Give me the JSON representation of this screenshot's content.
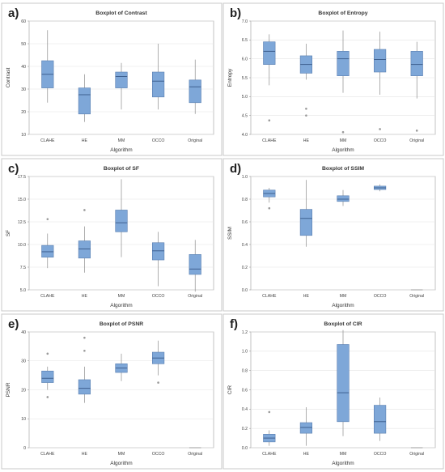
{
  "style": {
    "box_fill": "#7ea7d8",
    "box_stroke": "#5a7fb0",
    "median_color": "#2f4f7f",
    "whisker_color": "#7a7a7a",
    "outlier_color": "#9a9a9a"
  },
  "chart_data": [
    {
      "label": "a)",
      "type": "boxplot",
      "title": "Boxplot of Contrast",
      "xlabel": "Algorithm",
      "ylabel": "Contrast",
      "ylim": [
        10,
        60
      ],
      "yticks": [
        10,
        20,
        30,
        40,
        50,
        60
      ],
      "ytick_labels": [
        "10",
        "20",
        "30",
        "40",
        "50",
        "60"
      ],
      "categories": [
        "CLAHE",
        "HE",
        "MM",
        "OCCO",
        "Original"
      ],
      "boxes": [
        {
          "min": 24,
          "q1": 30.5,
          "median": 36.5,
          "q3": 42.5,
          "max": 56,
          "outliers": []
        },
        {
          "min": 15.5,
          "q1": 19,
          "median": 27.5,
          "q3": 30.5,
          "max": 36.5,
          "outliers": []
        },
        {
          "min": 21,
          "q1": 30.5,
          "median": 35.5,
          "q3": 37.5,
          "max": 41.5,
          "outliers": []
        },
        {
          "min": 21,
          "q1": 26.5,
          "median": 33.5,
          "q3": 37.5,
          "max": 50,
          "outliers": []
        },
        {
          "min": 19,
          "q1": 24,
          "median": 31,
          "q3": 34,
          "max": 43,
          "outliers": []
        }
      ]
    },
    {
      "label": "b)",
      "type": "boxplot",
      "title": "Boxplot of Entropy",
      "xlabel": "Algorithm",
      "ylabel": "Entropy",
      "ylim": [
        4.0,
        7.0
      ],
      "yticks": [
        4.0,
        4.5,
        5.0,
        5.5,
        6.0,
        6.5,
        7.0
      ],
      "ytick_labels": [
        "4.0",
        "4.5",
        "5.0",
        "5.5",
        "6.0",
        "6.5",
        "7.0"
      ],
      "categories": [
        "CLAHE",
        "HE",
        "MM",
        "OCCO",
        "Original"
      ],
      "boxes": [
        {
          "min": 5.3,
          "q1": 5.85,
          "median": 6.2,
          "q3": 6.45,
          "max": 6.65,
          "outliers": [
            4.37
          ]
        },
        {
          "min": 5.45,
          "q1": 5.62,
          "median": 5.85,
          "q3": 6.08,
          "max": 6.4,
          "outliers": [
            4.68,
            4.5
          ]
        },
        {
          "min": 5.1,
          "q1": 5.55,
          "median": 6.0,
          "q3": 6.2,
          "max": 6.75,
          "outliers": [
            4.06
          ]
        },
        {
          "min": 5.05,
          "q1": 5.65,
          "median": 5.98,
          "q3": 6.25,
          "max": 6.72,
          "outliers": [
            4.14
          ]
        },
        {
          "min": 4.95,
          "q1": 5.55,
          "median": 5.85,
          "q3": 6.2,
          "max": 6.45,
          "outliers": [
            4.1
          ]
        }
      ]
    },
    {
      "label": "c)",
      "type": "boxplot",
      "title": "Boxplot of SF",
      "xlabel": "Algorithm",
      "ylabel": "SF",
      "ylim": [
        5.0,
        17.5
      ],
      "yticks": [
        5.0,
        7.5,
        10.0,
        12.5,
        15.0,
        17.5
      ],
      "ytick_labels": [
        "5.0",
        "7.5",
        "10.0",
        "12.5",
        "15.0",
        "17.5"
      ],
      "categories": [
        "CLAHE",
        "HE",
        "MM",
        "OCCO",
        "Original"
      ],
      "boxes": [
        {
          "min": 7.4,
          "q1": 8.6,
          "median": 9.2,
          "q3": 9.9,
          "max": 11.2,
          "outliers": [
            12.8
          ]
        },
        {
          "min": 6.9,
          "q1": 8.5,
          "median": 9.5,
          "q3": 10.4,
          "max": 12.0,
          "outliers": [
            13.8
          ]
        },
        {
          "min": 8.6,
          "q1": 11.4,
          "median": 12.4,
          "q3": 13.8,
          "max": 17.2,
          "outliers": []
        },
        {
          "min": 5.4,
          "q1": 8.3,
          "median": 9.3,
          "q3": 10.2,
          "max": 11.4,
          "outliers": []
        },
        {
          "min": 4.8,
          "q1": 6.7,
          "median": 7.3,
          "q3": 8.9,
          "max": 10.5,
          "outliers": []
        }
      ]
    },
    {
      "label": "d)",
      "type": "boxplot",
      "title": "Boxplot of SSIM",
      "xlabel": "Algorithm",
      "ylabel": "SSIM",
      "ylim": [
        0.0,
        1.0
      ],
      "yticks": [
        0.0,
        0.2,
        0.4,
        0.6,
        0.8,
        1.0
      ],
      "ytick_labels": [
        "0.0",
        "0.2",
        "0.4",
        "0.6",
        "0.8",
        "1.0"
      ],
      "categories": [
        "CLAHE",
        "HE",
        "MM",
        "OCCO",
        "Original"
      ],
      "boxes": [
        {
          "min": 0.77,
          "q1": 0.82,
          "median": 0.85,
          "q3": 0.88,
          "max": 0.9,
          "outliers": [
            0.72
          ]
        },
        {
          "min": 0.38,
          "q1": 0.48,
          "median": 0.63,
          "q3": 0.71,
          "max": 0.97,
          "outliers": []
        },
        {
          "min": 0.74,
          "q1": 0.78,
          "median": 0.8,
          "q3": 0.83,
          "max": 0.88,
          "outliers": []
        },
        {
          "min": 0.87,
          "q1": 0.885,
          "median": 0.9,
          "q3": 0.915,
          "max": 0.93,
          "outliers": []
        },
        {
          "min": 0.0,
          "q1": 0.0,
          "median": 0.0,
          "q3": 0.0,
          "max": 0.0,
          "outliers": []
        }
      ]
    },
    {
      "label": "e)",
      "type": "boxplot",
      "title": "Boxplot of PSNR",
      "xlabel": "Algorithm",
      "ylabel": "PSNR",
      "ylim": [
        0,
        40
      ],
      "yticks": [
        0,
        10,
        20,
        30,
        40
      ],
      "ytick_labels": [
        "0",
        "10",
        "20",
        "30",
        "40"
      ],
      "categories": [
        "CLAHE",
        "HE",
        "MM",
        "OCCO",
        "Original"
      ],
      "boxes": [
        {
          "min": 20,
          "q1": 22.5,
          "median": 24,
          "q3": 26.5,
          "max": 28,
          "outliers": [
            32.5,
            17.5
          ]
        },
        {
          "min": 15.5,
          "q1": 18.5,
          "median": 20.5,
          "q3": 23.5,
          "max": 28,
          "outliers": [
            38,
            33.5
          ]
        },
        {
          "min": 23,
          "q1": 26,
          "median": 27.5,
          "q3": 29,
          "max": 32.5,
          "outliers": []
        },
        {
          "min": 25,
          "q1": 29,
          "median": 31,
          "q3": 33,
          "max": 37,
          "outliers": [
            22.5
          ]
        },
        {
          "min": 0,
          "q1": 0,
          "median": 0,
          "q3": 0,
          "max": 0,
          "outliers": []
        }
      ]
    },
    {
      "label": "f)",
      "type": "boxplot",
      "title": "Boxplot of CIR",
      "xlabel": "Algorithm",
      "ylabel": "CIR",
      "ylim": [
        0.0,
        1.2
      ],
      "yticks": [
        0.0,
        0.2,
        0.4,
        0.6,
        0.8,
        1.0,
        1.2
      ],
      "ytick_labels": [
        "0.0",
        "0.2",
        "0.4",
        "0.6",
        "0.8",
        "1.0",
        "1.2"
      ],
      "categories": [
        "CLAHE",
        "HE",
        "MM",
        "OCCO",
        "Original"
      ],
      "boxes": [
        {
          "min": 0.02,
          "q1": 0.06,
          "median": 0.1,
          "q3": 0.14,
          "max": 0.18,
          "outliers": [
            0.37
          ]
        },
        {
          "min": 0.02,
          "q1": 0.15,
          "median": 0.21,
          "q3": 0.26,
          "max": 0.42,
          "outliers": []
        },
        {
          "min": 0.12,
          "q1": 0.27,
          "median": 0.57,
          "q3": 1.07,
          "max": 1.22,
          "outliers": []
        },
        {
          "min": 0.07,
          "q1": 0.15,
          "median": 0.27,
          "q3": 0.44,
          "max": 0.52,
          "outliers": []
        },
        {
          "min": 0.0,
          "q1": 0.0,
          "median": 0.0,
          "q3": 0.0,
          "max": 0.0,
          "outliers": []
        }
      ]
    }
  ]
}
